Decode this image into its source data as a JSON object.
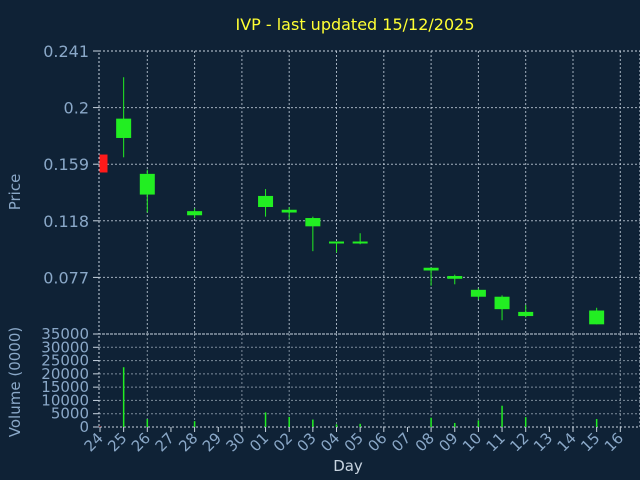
{
  "chart_data": {
    "type": "candlestick",
    "title": "IVP - last updated 15/12/2025",
    "xlabel": "Day",
    "ylabel": "Price",
    "volume_label": "Volume (0000)",
    "grid": true,
    "colors": {
      "background": "#0f2236",
      "title": "#ffff33",
      "axis_text": "#8aa8c8",
      "grid": "#c8d4e0",
      "up": "#22ee22",
      "down": "#ff1a1a"
    },
    "x_ticks": [
      "24",
      "25",
      "26",
      "27",
      "28",
      "29",
      "30",
      "01",
      "02",
      "03",
      "04",
      "05",
      "06",
      "07",
      "08",
      "09",
      "10",
      "11",
      "12",
      "13",
      "14",
      "15",
      "16"
    ],
    "price_axis": {
      "ylim": [
        0.036,
        0.241
      ],
      "ticks": [
        "0.241",
        "0.2",
        "0.159",
        "0.118",
        "0.077"
      ]
    },
    "volume_axis": {
      "ylim": [
        0,
        35000
      ],
      "ticks": [
        "35000",
        "30000",
        "25000",
        "20000",
        "15000",
        "10000",
        "5000",
        "0"
      ]
    },
    "candles": [
      {
        "day": "24",
        "open": 0.166,
        "high": 0.166,
        "low": 0.153,
        "close": 0.153,
        "volume": 200
      },
      {
        "day": "25",
        "open": 0.178,
        "high": 0.222,
        "low": 0.164,
        "close": 0.192,
        "volume": 22500
      },
      {
        "day": "26",
        "open": 0.137,
        "high": 0.155,
        "low": 0.124,
        "close": 0.152,
        "volume": 3000
      },
      {
        "day": "28",
        "open": 0.122,
        "high": 0.127,
        "low": 0.12,
        "close": 0.125,
        "volume": 2200
      },
      {
        "day": "01",
        "open": 0.128,
        "high": 0.141,
        "low": 0.121,
        "close": 0.136,
        "volume": 5500
      },
      {
        "day": "02",
        "open": 0.124,
        "high": 0.128,
        "low": 0.119,
        "close": 0.126,
        "volume": 3800
      },
      {
        "day": "03",
        "open": 0.114,
        "high": 0.121,
        "low": 0.096,
        "close": 0.12,
        "volume": 2800
      },
      {
        "day": "04",
        "open": 0.102,
        "high": 0.103,
        "low": 0.095,
        "close": 0.103,
        "volume": 1000
      },
      {
        "day": "05",
        "open": 0.102,
        "high": 0.109,
        "low": 0.101,
        "close": 0.103,
        "volume": 1200
      },
      {
        "day": "08",
        "open": 0.082,
        "high": 0.084,
        "low": 0.071,
        "close": 0.084,
        "volume": 3500
      },
      {
        "day": "09",
        "open": 0.076,
        "high": 0.079,
        "low": 0.072,
        "close": 0.078,
        "volume": 1500
      },
      {
        "day": "10",
        "open": 0.063,
        "high": 0.069,
        "low": 0.061,
        "close": 0.068,
        "volume": 2500
      },
      {
        "day": "11",
        "open": 0.054,
        "high": 0.064,
        "low": 0.046,
        "close": 0.063,
        "volume": 8000
      },
      {
        "day": "12",
        "open": 0.049,
        "high": 0.057,
        "low": 0.048,
        "close": 0.052,
        "volume": 3700
      },
      {
        "day": "15",
        "open": 0.043,
        "high": 0.055,
        "low": 0.043,
        "close": 0.053,
        "volume": 3000
      }
    ]
  }
}
